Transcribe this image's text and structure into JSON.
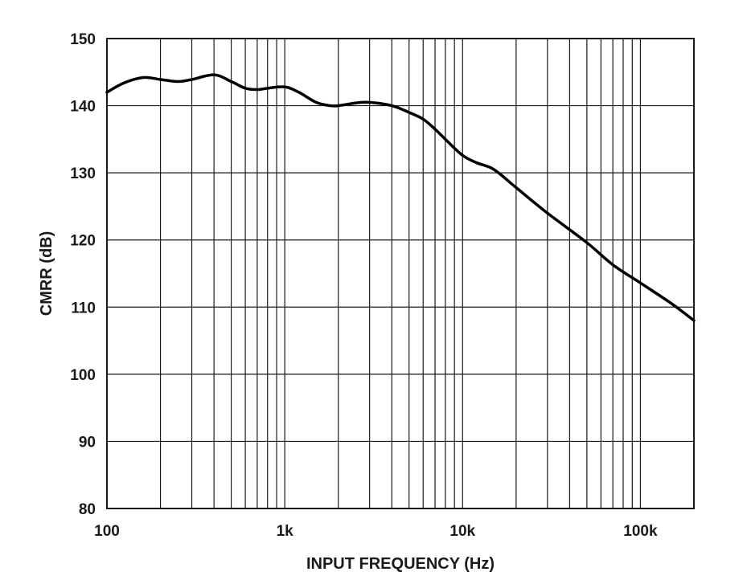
{
  "chart_data": {
    "type": "line",
    "title": "",
    "xlabel": "INPUT FREQUENCY (Hz)",
    "ylabel": "CMRR (dB)",
    "xscale": "log",
    "xlim": [
      100,
      200000
    ],
    "ylim": [
      80,
      150
    ],
    "x_ticks": [
      {
        "value": 100,
        "label": "100"
      },
      {
        "value": 1000,
        "label": "1k"
      },
      {
        "value": 10000,
        "label": "10k"
      },
      {
        "value": 100000,
        "label": "100k"
      }
    ],
    "y_ticks": [
      {
        "value": 80,
        "label": "80"
      },
      {
        "value": 90,
        "label": "90"
      },
      {
        "value": 100,
        "label": "100"
      },
      {
        "value": 110,
        "label": "110"
      },
      {
        "value": 120,
        "label": "120"
      },
      {
        "value": 130,
        "label": "130"
      },
      {
        "value": 140,
        "label": "140"
      },
      {
        "value": 150,
        "label": "150"
      }
    ],
    "grid": true,
    "series": [
      {
        "name": "CMRR",
        "color": "#000000",
        "points": [
          [
            100,
            142.0
          ],
          [
            125,
            143.4
          ],
          [
            160,
            144.2
          ],
          [
            200,
            143.9
          ],
          [
            250,
            143.6
          ],
          [
            300,
            143.9
          ],
          [
            400,
            144.6
          ],
          [
            500,
            143.6
          ],
          [
            600,
            142.6
          ],
          [
            700,
            142.4
          ],
          [
            800,
            142.6
          ],
          [
            1000,
            142.8
          ],
          [
            1200,
            142.0
          ],
          [
            1500,
            140.5
          ],
          [
            1800,
            140.0
          ],
          [
            2000,
            140.0
          ],
          [
            2500,
            140.4
          ],
          [
            3000,
            140.5
          ],
          [
            4000,
            140.0
          ],
          [
            5000,
            139.0
          ],
          [
            6000,
            138.0
          ],
          [
            7000,
            136.5
          ],
          [
            8000,
            135.0
          ],
          [
            10000,
            132.6
          ],
          [
            12000,
            131.5
          ],
          [
            15000,
            130.5
          ],
          [
            20000,
            127.8
          ],
          [
            30000,
            124.0
          ],
          [
            50000,
            119.6
          ],
          [
            70000,
            116.3
          ],
          [
            100000,
            113.6
          ],
          [
            150000,
            110.5
          ],
          [
            200000,
            108.0
          ]
        ]
      }
    ]
  }
}
